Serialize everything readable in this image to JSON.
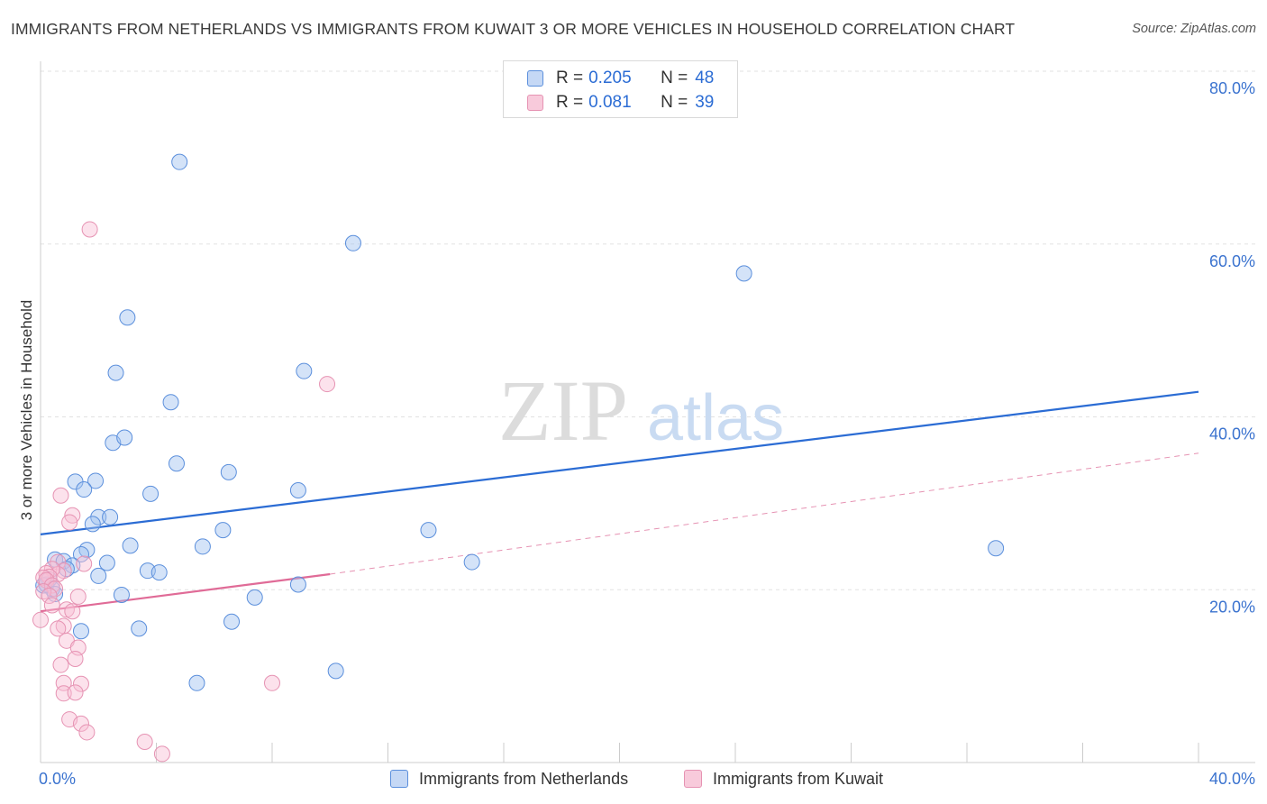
{
  "title": "IMMIGRANTS FROM NETHERLANDS VS IMMIGRANTS FROM KUWAIT 3 OR MORE VEHICLES IN HOUSEHOLD CORRELATION CHART",
  "source": "Source: ZipAtlas.com",
  "watermark": {
    "zip": "ZIP",
    "atlas": "atlas"
  },
  "legend": {
    "r_label": "R =",
    "n_label": "N =",
    "netherlands": {
      "r": "0.205",
      "n": "48"
    },
    "kuwait": {
      "r": "0.081",
      "n": "39"
    }
  },
  "chart_data": {
    "type": "scatter",
    "title": "IMMIGRANTS FROM NETHERLANDS VS IMMIGRANTS FROM KUWAIT 3 OR MORE VEHICLES IN HOUSEHOLD CORRELATION CHART",
    "xlabel": "",
    "ylabel": "3 or more Vehicles in Household",
    "xlim": [
      0,
      40
    ],
    "ylim": [
      0,
      80
    ],
    "x_tick_labels": [
      "0.0%",
      "40.0%"
    ],
    "y_ticks": [
      20,
      40,
      60,
      80
    ],
    "y_tick_labels": [
      "20.0%",
      "40.0%",
      "60.0%",
      "80.0%"
    ],
    "grid": true,
    "legend_position": "top-center",
    "colors": {
      "netherlands": "#2b6cd4",
      "kuwait": "#e06b97"
    },
    "series": [
      {
        "name": "Immigrants from Netherlands",
        "color": "#2b6cd4",
        "trend": {
          "x": [
            0,
            40
          ],
          "y": [
            26.4,
            42.9
          ],
          "dashed": false
        },
        "points": [
          [
            4.8,
            69.5
          ],
          [
            10.8,
            60.1
          ],
          [
            24.3,
            56.6
          ],
          [
            3.0,
            51.5
          ],
          [
            2.6,
            45.1
          ],
          [
            9.1,
            45.3
          ],
          [
            4.5,
            41.7
          ],
          [
            2.5,
            37.0
          ],
          [
            2.9,
            37.6
          ],
          [
            4.7,
            34.6
          ],
          [
            6.5,
            33.6
          ],
          [
            8.9,
            31.5
          ],
          [
            1.2,
            32.5
          ],
          [
            1.9,
            32.6
          ],
          [
            1.5,
            31.6
          ],
          [
            3.8,
            31.1
          ],
          [
            2.0,
            28.4
          ],
          [
            2.4,
            28.4
          ],
          [
            1.8,
            27.6
          ],
          [
            6.3,
            26.9
          ],
          [
            13.4,
            26.9
          ],
          [
            3.1,
            25.1
          ],
          [
            5.6,
            25.0
          ],
          [
            1.6,
            24.6
          ],
          [
            1.4,
            24.1
          ],
          [
            0.5,
            23.5
          ],
          [
            0.8,
            23.3
          ],
          [
            1.1,
            22.8
          ],
          [
            0.9,
            22.4
          ],
          [
            2.3,
            23.1
          ],
          [
            14.9,
            23.2
          ],
          [
            33.0,
            24.8
          ],
          [
            3.7,
            22.2
          ],
          [
            4.1,
            22.0
          ],
          [
            2.0,
            21.6
          ],
          [
            0.3,
            21.2
          ],
          [
            0.2,
            20.6
          ],
          [
            0.4,
            20.1
          ],
          [
            0.5,
            19.5
          ],
          [
            2.8,
            19.4
          ],
          [
            7.4,
            19.1
          ],
          [
            8.9,
            20.6
          ],
          [
            6.6,
            16.3
          ],
          [
            3.4,
            15.5
          ],
          [
            1.4,
            15.2
          ],
          [
            5.4,
            9.2
          ],
          [
            10.2,
            10.6
          ],
          [
            0.1,
            20.5
          ]
        ]
      },
      {
        "name": "Immigrants from Kuwait",
        "color": "#e06b97",
        "trend": {
          "x": [
            0,
            10
          ],
          "y": [
            17.5,
            21.8
          ],
          "dashed_extension": {
            "x": [
              10,
              40
            ],
            "y": [
              21.8,
              35.8
            ]
          }
        },
        "points": [
          [
            1.7,
            61.7
          ],
          [
            9.9,
            43.8
          ],
          [
            0.7,
            30.9
          ],
          [
            1.1,
            28.6
          ],
          [
            1.0,
            27.8
          ],
          [
            0.6,
            23.2
          ],
          [
            1.5,
            23.0
          ],
          [
            0.8,
            22.2
          ],
          [
            0.6,
            21.8
          ],
          [
            0.4,
            22.4
          ],
          [
            0.2,
            21.9
          ],
          [
            0.3,
            21.5
          ],
          [
            0.1,
            21.4
          ],
          [
            0.2,
            21.1
          ],
          [
            0.4,
            20.5
          ],
          [
            0.5,
            20.1
          ],
          [
            0.1,
            19.8
          ],
          [
            0.3,
            19.3
          ],
          [
            1.3,
            19.2
          ],
          [
            0.4,
            18.2
          ],
          [
            0.9,
            17.7
          ],
          [
            1.1,
            17.5
          ],
          [
            0.0,
            16.5
          ],
          [
            0.8,
            15.8
          ],
          [
            0.6,
            15.5
          ],
          [
            0.9,
            14.1
          ],
          [
            1.3,
            13.3
          ],
          [
            1.2,
            12.0
          ],
          [
            0.7,
            11.3
          ],
          [
            0.8,
            9.2
          ],
          [
            1.4,
            9.1
          ],
          [
            0.8,
            8.0
          ],
          [
            1.2,
            8.1
          ],
          [
            8.0,
            9.2
          ],
          [
            1.0,
            5.0
          ],
          [
            1.4,
            4.5
          ],
          [
            1.6,
            3.5
          ],
          [
            3.6,
            2.4
          ],
          [
            4.2,
            1.0
          ]
        ]
      }
    ]
  }
}
